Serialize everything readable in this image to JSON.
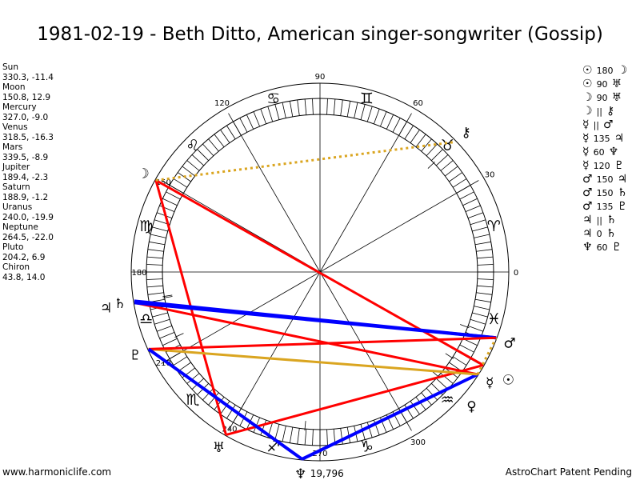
{
  "title": "1981-02-19 - Beth Ditto, American singer-songwriter (Gossip)",
  "planets": [
    {
      "name": "Sun",
      "glyph": "☉",
      "coords": "330.3, -11.4",
      "lon": 330.3
    },
    {
      "name": "Moon",
      "glyph": "☽",
      "coords": "150.8, 12.9",
      "lon": 150.8
    },
    {
      "name": "Mercury",
      "glyph": "☿",
      "coords": "327.0, -9.0",
      "lon": 327.0
    },
    {
      "name": "Venus",
      "glyph": "♀",
      "coords": "318.5, -16.3",
      "lon": 318.5
    },
    {
      "name": "Mars",
      "glyph": "♂",
      "coords": "339.5, -8.9",
      "lon": 339.5
    },
    {
      "name": "Jupiter",
      "glyph": "♃",
      "coords": "189.4, -2.3",
      "lon": 189.4
    },
    {
      "name": "Saturn",
      "glyph": "♄",
      "coords": "188.9, -1.2",
      "lon": 188.9
    },
    {
      "name": "Uranus",
      "glyph": "♅",
      "coords": "240.0, -19.9",
      "lon": 240.0
    },
    {
      "name": "Neptune",
      "glyph": "♆",
      "coords": "264.5, -22.0",
      "lon": 264.5
    },
    {
      "name": "Pluto",
      "glyph": "♇",
      "coords": "204.2, 6.9",
      "lon": 204.2
    },
    {
      "name": "Chiron",
      "glyph": "⚷",
      "coords": "43.8, 14.0",
      "lon": 43.8
    }
  ],
  "aspects": [
    {
      "p1": "Sun",
      "g1": "☉",
      "type": "180",
      "p2": "Moon",
      "g2": "☽",
      "color": "#ff0000",
      "style": "solid"
    },
    {
      "p1": "Sun",
      "g1": "☉",
      "type": "90",
      "p2": "Uranus",
      "g2": "♅",
      "color": "#ff0000",
      "style": "solid"
    },
    {
      "p1": "Moon",
      "g1": "☽",
      "type": "90",
      "p2": "Uranus",
      "g2": "♅",
      "color": "#ff0000",
      "style": "solid"
    },
    {
      "p1": "Moon",
      "g1": "☽",
      "type": "||",
      "p2": "Chiron",
      "g2": "⚷",
      "color": "#daa520",
      "style": "dotted"
    },
    {
      "p1": "Mercury",
      "g1": "☿",
      "type": "||",
      "p2": "Mars",
      "g2": "♂",
      "color": "#daa520",
      "style": "dotted"
    },
    {
      "p1": "Mercury",
      "g1": "☿",
      "type": "135",
      "p2": "Jupiter",
      "g2": "♃",
      "color": "#ff0000",
      "style": "solid"
    },
    {
      "p1": "Mercury",
      "g1": "☿",
      "type": "60",
      "p2": "Neptune",
      "g2": "♆",
      "color": "#0000ff",
      "style": "solid"
    },
    {
      "p1": "Mercury",
      "g1": "☿",
      "type": "120",
      "p2": "Pluto",
      "g2": "♇",
      "color": "#daa520",
      "style": "solid"
    },
    {
      "p1": "Mars",
      "g1": "♂",
      "type": "150",
      "p2": "Jupiter",
      "g2": "♃",
      "color": "#0000ff",
      "style": "solid"
    },
    {
      "p1": "Mars",
      "g1": "♂",
      "type": "150",
      "p2": "Saturn",
      "g2": "♄",
      "color": "#0000ff",
      "style": "solid"
    },
    {
      "p1": "Mars",
      "g1": "♂",
      "type": "135",
      "p2": "Pluto",
      "g2": "♇",
      "color": "#ff0000",
      "style": "solid"
    },
    {
      "p1": "Jupiter",
      "g1": "♃",
      "type": "||",
      "p2": "Saturn",
      "g2": "♄",
      "color": "#daa520",
      "style": "none"
    },
    {
      "p1": "Jupiter",
      "g1": "♃",
      "type": "0",
      "p2": "Saturn",
      "g2": "♄",
      "color": "#daa520",
      "style": "none"
    },
    {
      "p1": "Neptune",
      "g1": "♆",
      "type": "60",
      "p2": "Pluto",
      "g2": "♇",
      "color": "#0000ff",
      "style": "solid"
    }
  ],
  "signs": [
    "♈",
    "♉",
    "♊",
    "♋",
    "♌",
    "♍",
    "♎",
    "♏",
    "♐",
    "♑",
    "♒",
    "♓"
  ],
  "degree_labels": [
    "0",
    "30",
    "60",
    "90",
    "120",
    "150",
    "180",
    "210",
    "240",
    "270",
    "300"
  ],
  "extra_label": "19,796",
  "footer_left": "www.harmoniclife.com",
  "footer_right": "AstroChart Patent Pending"
}
